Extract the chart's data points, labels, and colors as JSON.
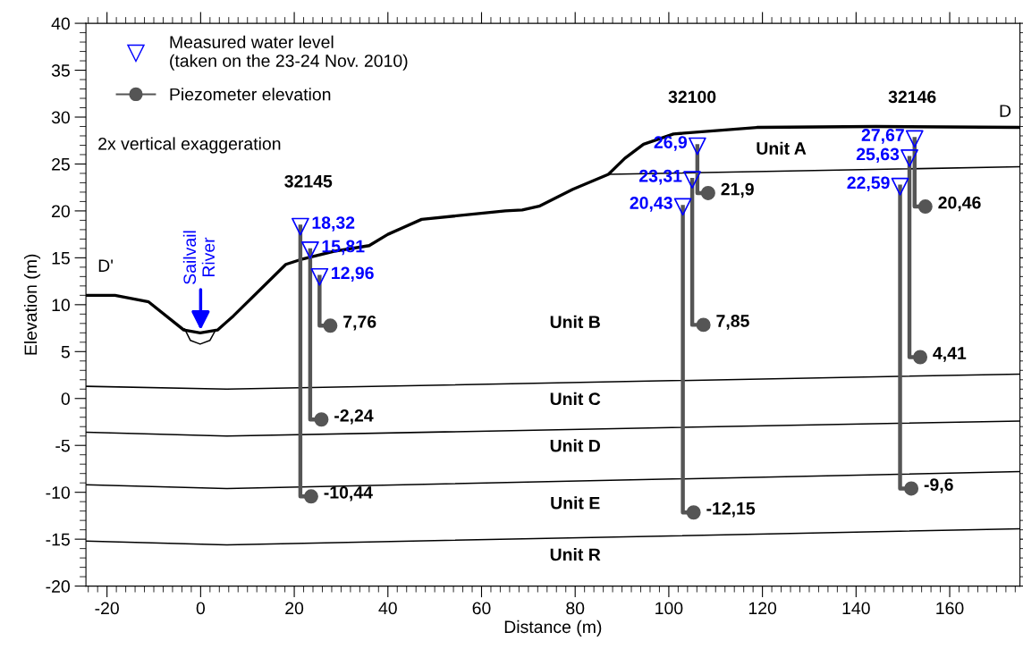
{
  "chart_data": {
    "type": "line",
    "xlabel": "Distance (m)",
    "ylabel": "Elevation (m)",
    "xlim": [
      -24.5,
      175
    ],
    "ylim": [
      -20,
      40
    ],
    "xticks": [
      -20,
      0,
      20,
      40,
      60,
      80,
      100,
      120,
      140,
      160
    ],
    "yticks": [
      -20,
      -15,
      -10,
      -5,
      0,
      5,
      10,
      15,
      20,
      25,
      30,
      35,
      40
    ],
    "grid": false,
    "legend": "top left",
    "series": [
      {
        "color": "#000000",
        "line_style": "solid",
        "x": [
          -24.5,
          -18.3,
          -11.1,
          -3.6,
          -0.1,
          3.6,
          7.0,
          18.2,
          21.3,
          28.5,
          36.0,
          40.0,
          47.2,
          65.1,
          68.7,
          72.3,
          79.5,
          87.1,
          90.6,
          94.6,
          101.0,
          118.8,
          144.2,
          175
        ],
        "values": [
          11.0,
          11.0,
          10.3,
          7.3,
          7.0,
          7.3,
          8.8,
          14.3,
          14.8,
          15.7,
          16.3,
          17.5,
          19.1,
          20.0,
          20.1,
          20.5,
          22.3,
          23.9,
          25.6,
          27.1,
          28.2,
          28.9,
          29.0,
          28.9
        ]
      },
      {
        "color": "#000000",
        "x": [
          -3.4,
          -2.2,
          -0.1,
          2.0,
          3.2
        ],
        "values": [
          7.4,
          6.2,
          5.8,
          6.2,
          7.3
        ]
      },
      {
        "color": "#000000",
        "x": [
          87.1,
          175
        ],
        "values": [
          23.9,
          24.7
        ]
      },
      {
        "color": "#000000",
        "x": [
          -24.5,
          5.5,
          175
        ],
        "values": [
          1.3,
          1.0,
          2.6
        ]
      },
      {
        "color": "#000000",
        "x": [
          -24.5,
          5.5,
          175
        ],
        "values": [
          -3.6,
          -4.0,
          -2.4
        ]
      },
      {
        "color": "#000000",
        "x": [
          -24.5,
          5.5,
          175
        ],
        "values": [
          -9.2,
          -9.6,
          -7.8
        ]
      },
      {
        "color": "#000000",
        "x": [
          -24.5,
          5.5,
          175
        ],
        "values": [
          -15.2,
          -15.6,
          -13.9
        ]
      },
      {
        "color": "#555555",
        "x": [
          21.3,
          21.3,
          23.6
        ],
        "values": [
          18.32,
          -10.44,
          -10.44
        ]
      },
      {
        "color": "#555555",
        "x": [
          23.4,
          23.4,
          25.8
        ],
        "values": [
          15.81,
          -2.24,
          -2.24
        ]
      },
      {
        "color": "#555555",
        "x": [
          25.4,
          25.4,
          27.7
        ],
        "values": [
          12.96,
          7.76,
          7.76
        ]
      },
      {
        "color": "#555555",
        "x": [
          103.0,
          103.0,
          105.3
        ],
        "values": [
          20.43,
          -12.15,
          -12.15
        ]
      },
      {
        "color": "#555555",
        "x": [
          105.0,
          105.0,
          107.4
        ],
        "values": [
          23.31,
          7.85,
          7.85
        ]
      },
      {
        "color": "#555555",
        "x": [
          106.1,
          106.1,
          108.4
        ],
        "values": [
          26.9,
          21.9,
          21.9
        ]
      },
      {
        "color": "#555555",
        "x": [
          149.4,
          149.4,
          151.8
        ],
        "values": [
          22.59,
          -9.6,
          -9.6
        ]
      },
      {
        "color": "#555555",
        "x": [
          151.4,
          151.4,
          153.7
        ],
        "values": [
          25.63,
          4.41,
          4.41
        ]
      },
      {
        "color": "#555555",
        "x": [
          152.5,
          152.5,
          154.8
        ],
        "values": [
          27.67,
          20.46,
          20.46
        ]
      },
      {
        "type": "scatter",
        "name": "Measured water level\n(taken on the 23-24 Nov. 2010)",
        "color": "#0000ff",
        "marker": "triangle",
        "x": [
          21.3,
          23.4,
          25.4,
          103.0,
          105.0,
          106.1,
          149.4,
          151.4,
          152.5
        ],
        "values": [
          18.32,
          15.81,
          12.96,
          20.43,
          23.31,
          26.9,
          22.59,
          25.63,
          27.67
        ],
        "value_labels": [
          "18,32",
          "15,81",
          "12,96",
          "20,43",
          "23,31",
          "26,9",
          "22,59",
          "25,63",
          "27,67"
        ]
      },
      {
        "type": "scatter",
        "name": "Piezometer elevation",
        "color": "#555555",
        "marker": "circle",
        "x": [
          23.6,
          25.8,
          27.7,
          105.3,
          107.4,
          108.4,
          151.8,
          153.7,
          154.8
        ],
        "values": [
          -10.44,
          -2.24,
          7.76,
          -12.15,
          7.85,
          21.9,
          -9.6,
          4.41,
          20.46
        ],
        "value_labels": [
          "-10,44",
          "-2,24",
          "7,76",
          "-12,15",
          "7,85",
          "21,9",
          "-9,6",
          "4,41",
          "20,46"
        ]
      }
    ],
    "annotations": [
      "2x vertical exaggeration",
      "D'",
      "D",
      "32145",
      "32100",
      "32146",
      "Sailvail River",
      "Unit A",
      "Unit B",
      "Unit C",
      "Unit D",
      "Unit E",
      "Unit R"
    ]
  }
}
